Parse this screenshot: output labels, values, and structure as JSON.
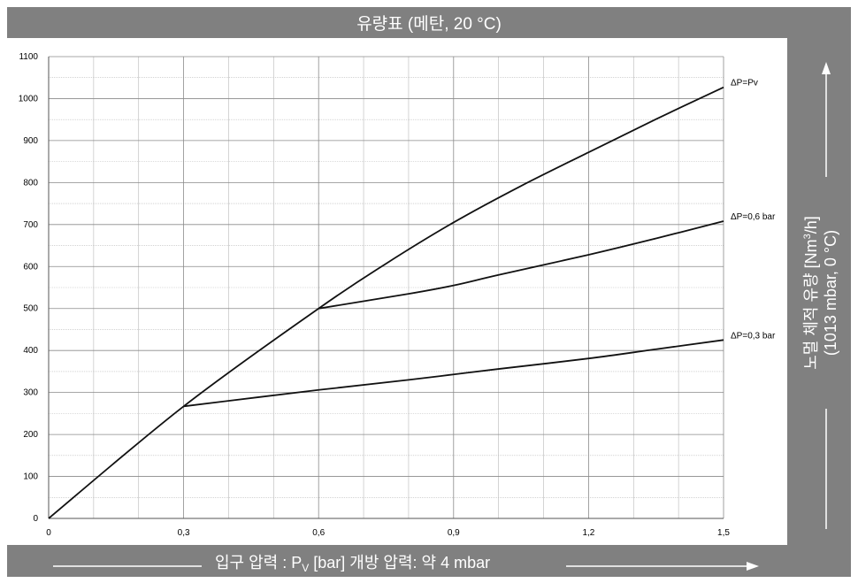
{
  "title": "유량표 (메탄, 20 °C)",
  "xlabel": {
    "prefix": "입구 압력 : P",
    "sub": "V",
    "suffix": " [bar] 개방 압력: 약 4 mbar"
  },
  "ylabel": {
    "line1_main": "노멀 체적 유량 [Nm",
    "line1_sup": "3",
    "line1_end": "/h]",
    "line2": "(1013 mbar, 0 °C)"
  },
  "chart_data": {
    "type": "line",
    "xlim": [
      0,
      1.5
    ],
    "ylim": [
      0,
      1100
    ],
    "x_ticks": [
      0,
      0.3,
      0.6,
      0.9,
      1.2,
      1.5
    ],
    "x_tick_labels": [
      "0",
      "0,3",
      "0,6",
      "0,9",
      "1,2",
      "1,5"
    ],
    "y_ticks": [
      0,
      100,
      200,
      300,
      400,
      500,
      600,
      700,
      800,
      900,
      1000,
      1100
    ],
    "y_tick_labels": [
      "0",
      "100",
      "200",
      "300",
      "400",
      "500",
      "600",
      "700",
      "800",
      "900",
      "1000",
      "1100"
    ],
    "grid": true,
    "series": [
      {
        "name": "ΔP=Pv",
        "x": [
          0,
          0.3,
          0.6,
          0.75,
          0.9,
          1.05,
          1.2,
          1.35,
          1.5
        ],
        "y": [
          0,
          267,
          500,
          607,
          705,
          792,
          872,
          951,
          1027
        ]
      },
      {
        "name": "ΔP=0,6 bar",
        "x": [
          0.6,
          0.8,
          0.9,
          1.0,
          1.2,
          1.35,
          1.5
        ],
        "y": [
          500,
          535,
          555,
          580,
          628,
          667,
          708
        ]
      },
      {
        "name": "ΔP=0,3 bar",
        "x": [
          0.3,
          0.6,
          0.8,
          0.9,
          1.0,
          1.2,
          1.35,
          1.5
        ],
        "y": [
          267,
          306,
          330,
          343,
          356,
          381,
          403,
          425
        ]
      }
    ]
  }
}
